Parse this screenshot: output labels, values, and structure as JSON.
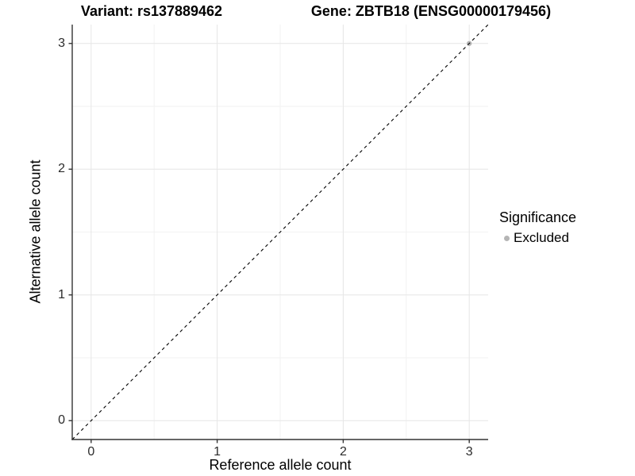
{
  "header": {
    "title_left": "Variant: rs137889462",
    "title_right": "Gene: ZBTB18 (ENSG00000179456)"
  },
  "chart_data": {
    "type": "scatter",
    "title_left": "Variant: rs137889462",
    "title_right": "Gene: ZBTB18 (ENSG00000179456)",
    "xlabel": "Reference allele count",
    "ylabel": "Alternative allele count",
    "xlim": [
      -0.15,
      3.15
    ],
    "ylim": [
      -0.15,
      3.15
    ],
    "xticks": [
      0,
      1,
      2,
      3
    ],
    "yticks": [
      0,
      1,
      2,
      3
    ],
    "xminor": [
      0.5,
      1.5,
      2.5
    ],
    "yminor": [
      0.5,
      1.5,
      2.5
    ],
    "grid": "major+minor",
    "reference_line": {
      "equation": "y = x",
      "style": "dashed",
      "color": "#000000",
      "from": [
        -0.15,
        -0.15
      ],
      "to": [
        3.15,
        3.15
      ]
    },
    "series": [
      {
        "name": "Excluded",
        "color": "#b5b5b5",
        "points": [
          {
            "x": 3,
            "y": 3
          }
        ]
      }
    ],
    "legend": {
      "title": "Significance",
      "position": "right",
      "items": [
        {
          "label": "Excluded",
          "color": "#b5b5b5"
        }
      ]
    }
  },
  "colors": {
    "axis_line": "#333333",
    "tick_mark": "#333333",
    "grid_major": "#e6e6e6",
    "grid_minor": "#f2f2f2",
    "point_excluded": "#b5b5b5",
    "background": "#ffffff"
  }
}
